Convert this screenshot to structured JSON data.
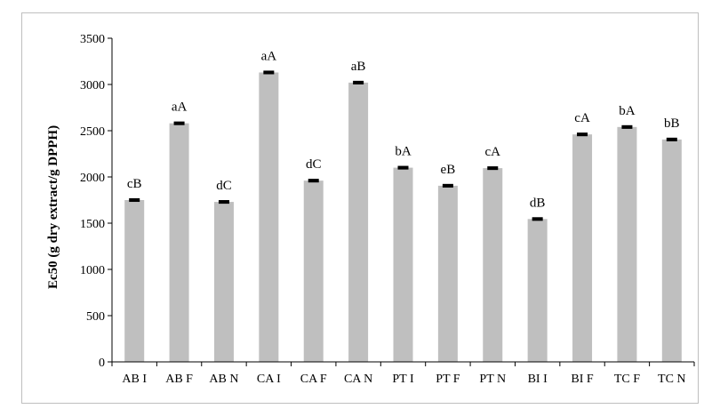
{
  "chart_data": {
    "type": "bar",
    "ylabel": "Ec50 (g dry extract/g DPPH)",
    "ylim": [
      0,
      3500
    ],
    "yticks": [
      0,
      500,
      1000,
      1500,
      2000,
      2500,
      3000,
      3500
    ],
    "categories": [
      "AB I",
      "AB F",
      "AB N",
      "CA I",
      "CA F",
      "CA N",
      "PT I",
      "PT F",
      "PT N",
      "BI I",
      "BI F",
      "TC F",
      "TC N"
    ],
    "values": [
      1750,
      2580,
      1730,
      3130,
      1960,
      3020,
      2100,
      1905,
      2095,
      1545,
      2460,
      2540,
      2405
    ],
    "error": [
      10,
      10,
      10,
      10,
      10,
      10,
      10,
      10,
      10,
      10,
      10,
      10,
      10
    ],
    "data_labels": [
      "cB",
      "aA",
      "dC",
      "aA",
      "dC",
      "aB",
      "bA",
      "eB",
      "cA",
      "dB",
      "cA",
      "bA",
      "bB"
    ],
    "bar_color": "#bfbfbf",
    "error_color": "#000000",
    "grid": false,
    "legend": "none"
  }
}
